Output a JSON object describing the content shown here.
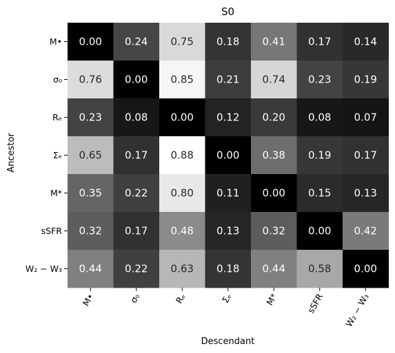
{
  "chart_data": {
    "type": "heatmap",
    "title": "S0",
    "xlabel": "Descendant",
    "ylabel": "Ancestor",
    "rows": [
      "M•",
      "σ₀",
      "Rₑ",
      "Σₑ",
      "M*",
      "sSFR",
      "W₂ − W₃"
    ],
    "columns": [
      "M•",
      "σ₀",
      "Rₑ",
      "Σₑ",
      "M*",
      "sSFR",
      "W₂ − W₃"
    ],
    "values": [
      [
        0.0,
        0.24,
        0.75,
        0.18,
        0.41,
        0.17,
        0.14
      ],
      [
        0.76,
        0.0,
        0.85,
        0.21,
        0.74,
        0.23,
        0.19
      ],
      [
        0.23,
        0.08,
        0.0,
        0.12,
        0.2,
        0.08,
        0.07
      ],
      [
        0.65,
        0.17,
        0.88,
        0.0,
        0.38,
        0.19,
        0.17
      ],
      [
        0.35,
        0.22,
        0.8,
        0.11,
        0.0,
        0.15,
        0.13
      ],
      [
        0.32,
        0.17,
        0.48,
        0.13,
        0.32,
        0.0,
        0.42
      ],
      [
        0.44,
        0.22,
        0.63,
        0.18,
        0.44,
        0.58,
        0.0
      ]
    ],
    "value_format": "0.00",
    "colormap": "greys_r",
    "vmin": 0.0,
    "vmax": 0.88,
    "colorbar": false
  }
}
